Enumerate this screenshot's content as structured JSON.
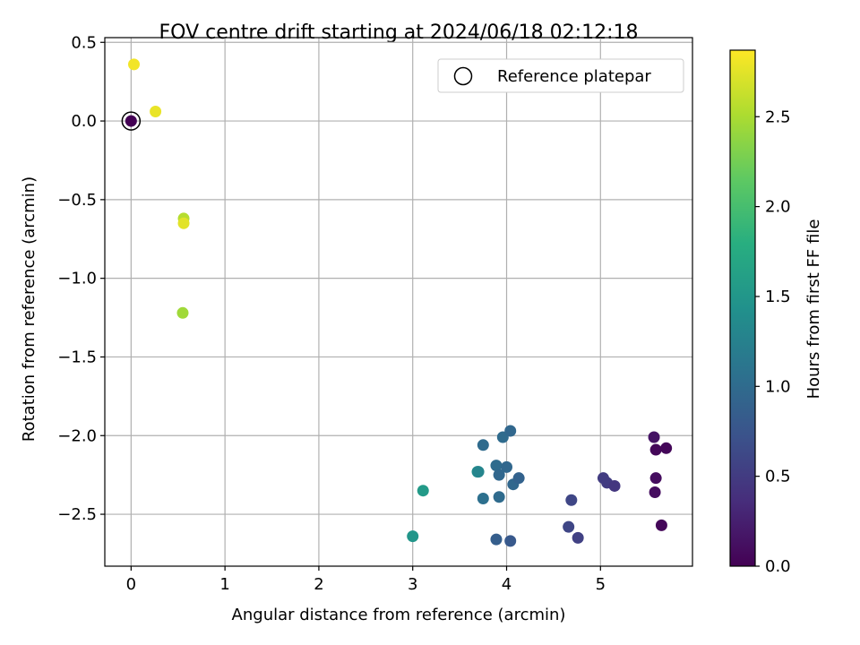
{
  "chart_data": {
    "type": "scatter",
    "title": "FOV centre drift starting at 2024/06/18 02:12:18",
    "xlabel": "Angular distance from reference (arcmin)",
    "ylabel": "Rotation from reference (arcmin)",
    "xlim": [
      -0.28,
      5.98
    ],
    "ylim": [
      -2.83,
      0.53
    ],
    "xticks": [
      0,
      1,
      2,
      3,
      4,
      5
    ],
    "yticks": [
      0.5,
      0.0,
      -0.5,
      -1.0,
      -1.5,
      -2.0,
      -2.5
    ],
    "xtick_labels": [
      "0",
      "1",
      "2",
      "3",
      "4",
      "5"
    ],
    "ytick_labels": [
      "0.5",
      "0.0",
      "−0.5",
      "−1.0",
      "−1.5",
      "−2.0",
      "−2.5"
    ],
    "grid": true,
    "legend": {
      "position": "top-right",
      "entries": [
        {
          "label": "Reference platepar",
          "marker": "open-circle"
        }
      ]
    },
    "colorbar": {
      "label": "Hours from first FF file",
      "range": [
        0.0,
        2.87
      ],
      "colormap": "viridis",
      "ticks": [
        0.0,
        0.5,
        1.0,
        1.5,
        2.0,
        2.5
      ],
      "tick_labels": [
        "0.0",
        "0.5",
        "1.0",
        "1.5",
        "2.0",
        "2.5"
      ]
    },
    "reference": {
      "x": 0.0,
      "y": 0.0,
      "c": 0.0
    },
    "points": [
      {
        "x": 0.03,
        "y": 0.36,
        "c": 2.82
      },
      {
        "x": 0.26,
        "y": 0.06,
        "c": 2.78
      },
      {
        "x": 0.56,
        "y": -0.62,
        "c": 2.55
      },
      {
        "x": 0.56,
        "y": -0.65,
        "c": 2.75
      },
      {
        "x": 0.55,
        "y": -1.22,
        "c": 2.45
      },
      {
        "x": 3.11,
        "y": -2.35,
        "c": 1.55
      },
      {
        "x": 3.0,
        "y": -2.64,
        "c": 1.5
      },
      {
        "x": 3.69,
        "y": -2.23,
        "c": 1.4
      },
      {
        "x": 3.7,
        "y": -2.23,
        "c": 1.3
      },
      {
        "x": 3.75,
        "y": -2.06,
        "c": 1.0
      },
      {
        "x": 3.75,
        "y": -2.4,
        "c": 1.05
      },
      {
        "x": 3.89,
        "y": -2.19,
        "c": 1.0
      },
      {
        "x": 3.92,
        "y": -2.25,
        "c": 0.95
      },
      {
        "x": 3.92,
        "y": -2.39,
        "c": 1.0
      },
      {
        "x": 3.96,
        "y": -2.01,
        "c": 1.0
      },
      {
        "x": 4.0,
        "y": -2.2,
        "c": 0.95
      },
      {
        "x": 4.04,
        "y": -1.97,
        "c": 0.95
      },
      {
        "x": 4.07,
        "y": -2.31,
        "c": 0.95
      },
      {
        "x": 4.13,
        "y": -2.27,
        "c": 0.9
      },
      {
        "x": 3.89,
        "y": -2.66,
        "c": 0.85
      },
      {
        "x": 4.04,
        "y": -2.67,
        "c": 0.8
      },
      {
        "x": 4.66,
        "y": -2.58,
        "c": 0.6
      },
      {
        "x": 4.69,
        "y": -2.41,
        "c": 0.6
      },
      {
        "x": 4.76,
        "y": -2.65,
        "c": 0.55
      },
      {
        "x": 5.03,
        "y": -2.27,
        "c": 0.5
      },
      {
        "x": 5.07,
        "y": -2.3,
        "c": 0.5
      },
      {
        "x": 5.15,
        "y": -2.32,
        "c": 0.45
      },
      {
        "x": 5.57,
        "y": -2.01,
        "c": 0.15
      },
      {
        "x": 5.59,
        "y": -2.09,
        "c": 0.05
      },
      {
        "x": 5.7,
        "y": -2.08,
        "c": 0.05
      },
      {
        "x": 5.59,
        "y": -2.27,
        "c": 0.1
      },
      {
        "x": 5.58,
        "y": -2.36,
        "c": 0.1
      },
      {
        "x": 5.65,
        "y": -2.57,
        "c": 0.05
      }
    ]
  }
}
